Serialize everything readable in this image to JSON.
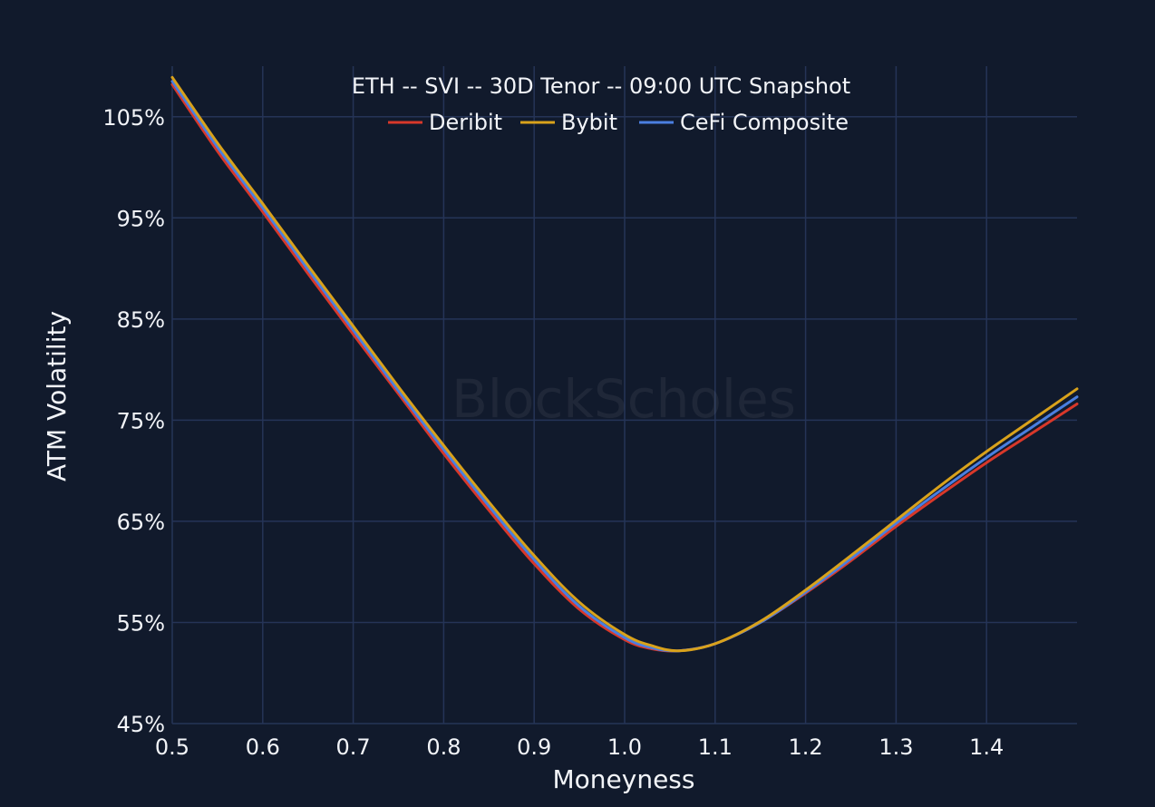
{
  "chart_data": {
    "type": "line",
    "title": "ETH -- SVI -- 30D Tenor -- 09:00 UTC Snapshot",
    "xlabel": "Moneyness",
    "ylabel": "ATM Volatility",
    "xlim": [
      0.5,
      1.5
    ],
    "ylim": [
      45,
      110
    ],
    "x_ticks": [
      0.5,
      0.6,
      0.7,
      0.8,
      0.9,
      1.0,
      1.1,
      1.2,
      1.3,
      1.4
    ],
    "x_tick_labels": [
      "0.5",
      "0.6",
      "0.7",
      "0.8",
      "0.9",
      "1.0",
      "1.1",
      "1.2",
      "1.3",
      "1.4"
    ],
    "y_ticks": [
      45,
      55,
      65,
      75,
      85,
      95,
      105
    ],
    "y_tick_labels": [
      "45%",
      "55%",
      "65%",
      "75%",
      "85%",
      "95%",
      "105%"
    ],
    "grid": true,
    "legend_position": "top-center",
    "watermark": "BlockScholes",
    "x": [
      0.5,
      0.55,
      0.6,
      0.65,
      0.7,
      0.75,
      0.8,
      0.85,
      0.9,
      0.95,
      1.0,
      1.03,
      1.06,
      1.1,
      1.15,
      1.2,
      1.25,
      1.3,
      1.35,
      1.4,
      1.45,
      1.5
    ],
    "series": [
      {
        "name": "Deribit",
        "color": "#d8382a",
        "values": [
          108.2,
          101.6,
          95.6,
          89.5,
          83.5,
          77.6,
          71.7,
          66.1,
          60.8,
          56.3,
          53.3,
          52.4,
          52.2,
          52.9,
          55.0,
          57.9,
          61.1,
          64.5,
          67.7,
          70.8,
          73.7,
          76.6
        ]
      },
      {
        "name": "Bybit",
        "color": "#d9a21b",
        "values": [
          108.9,
          102.4,
          96.4,
          90.3,
          84.3,
          78.3,
          72.5,
          66.9,
          61.6,
          57.0,
          53.8,
          52.7,
          52.2,
          52.9,
          55.1,
          58.2,
          61.6,
          65.1,
          68.6,
          71.9,
          75.0,
          78.1
        ]
      },
      {
        "name": "CeFi Composite",
        "color": "#4a7fe0",
        "values": [
          108.5,
          102.0,
          96.0,
          89.9,
          83.9,
          77.9,
          72.1,
          66.5,
          61.2,
          56.6,
          53.5,
          52.5,
          52.2,
          52.9,
          55.0,
          58.0,
          61.3,
          64.8,
          68.1,
          71.3,
          74.3,
          77.3
        ]
      }
    ]
  }
}
